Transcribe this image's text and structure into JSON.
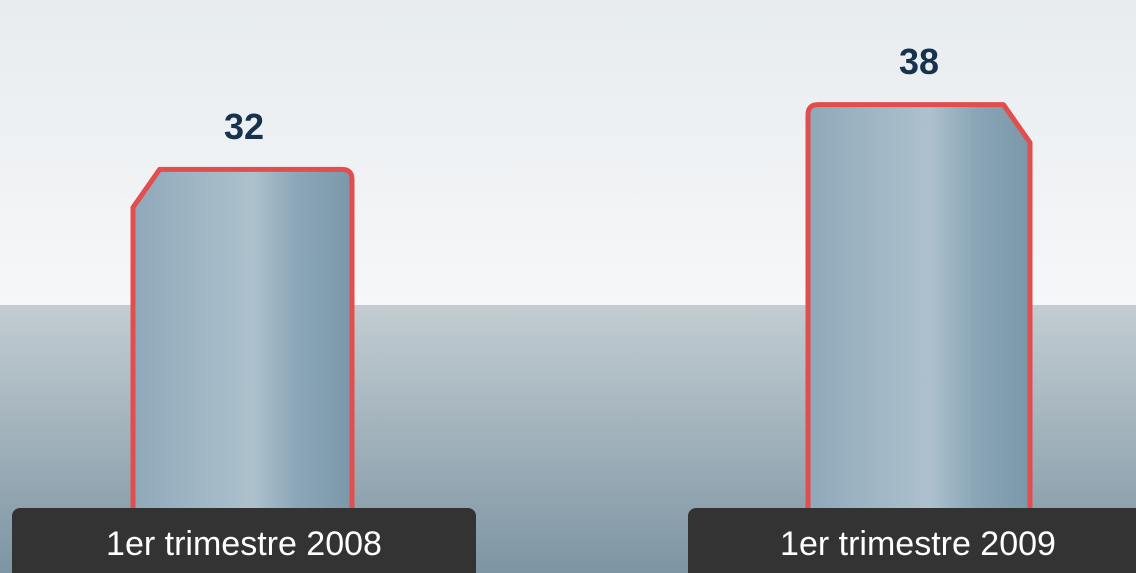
{
  "chart_data": {
    "type": "bar",
    "categories": [
      "1er trimestre 2008",
      "1er trimestre 2009"
    ],
    "values": [
      32,
      38
    ],
    "color": "#e04e4e"
  }
}
